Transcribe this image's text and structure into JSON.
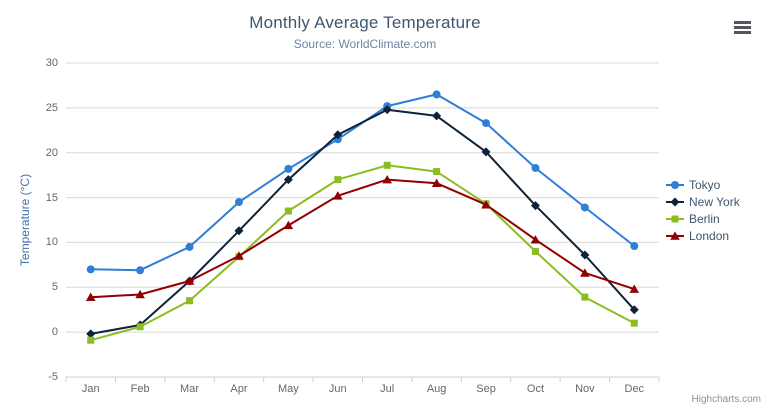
{
  "header": {
    "title": "Monthly Average Temperature",
    "subtitle": "Source: WorldClimate.com"
  },
  "credits": {
    "label": "Highcharts.com"
  },
  "export_menu": {
    "icon": "hamburger-menu-icon"
  },
  "theme": {
    "title_color": "#3e576f",
    "subtitle_color": "#6d869f",
    "axis_label_color": "#666666",
    "y_axis_title_color": "#4572a7",
    "legend_text_color": "#3e576f",
    "gridline_color": "#d8d8d8",
    "x_axis_line_color": "#c0d0e0",
    "background": "#ffffff"
  },
  "chart_data": {
    "type": "line",
    "title": "Monthly Average Temperature",
    "subtitle": "Source: WorldClimate.com",
    "xlabel": "",
    "ylabel": "Temperature (°C)",
    "ylim": [
      -5,
      30
    ],
    "ytick_step": 5,
    "grid": true,
    "legend_position": "right",
    "categories": [
      "Jan",
      "Feb",
      "Mar",
      "Apr",
      "May",
      "Jun",
      "Jul",
      "Aug",
      "Sep",
      "Oct",
      "Nov",
      "Dec"
    ],
    "series": [
      {
        "name": "Tokyo",
        "color": "#2f7ed8",
        "marker": "circle",
        "values": [
          7.0,
          6.9,
          9.5,
          14.5,
          18.2,
          21.5,
          25.2,
          26.5,
          23.3,
          18.3,
          13.9,
          9.6
        ]
      },
      {
        "name": "New York",
        "color": "#0d233a",
        "marker": "diamond",
        "values": [
          -0.2,
          0.8,
          5.7,
          11.3,
          17.0,
          22.0,
          24.8,
          24.1,
          20.1,
          14.1,
          8.6,
          2.5
        ]
      },
      {
        "name": "Berlin",
        "color": "#8bbc21",
        "marker": "square",
        "values": [
          -0.9,
          0.6,
          3.5,
          8.4,
          13.5,
          17.0,
          18.6,
          17.9,
          14.3,
          9.0,
          3.9,
          1.0
        ]
      },
      {
        "name": "London",
        "color": "#910000",
        "marker": "triangle",
        "values": [
          3.9,
          4.2,
          5.7,
          8.5,
          11.9,
          15.2,
          17.0,
          16.6,
          14.2,
          10.3,
          6.6,
          4.8
        ]
      }
    ]
  }
}
